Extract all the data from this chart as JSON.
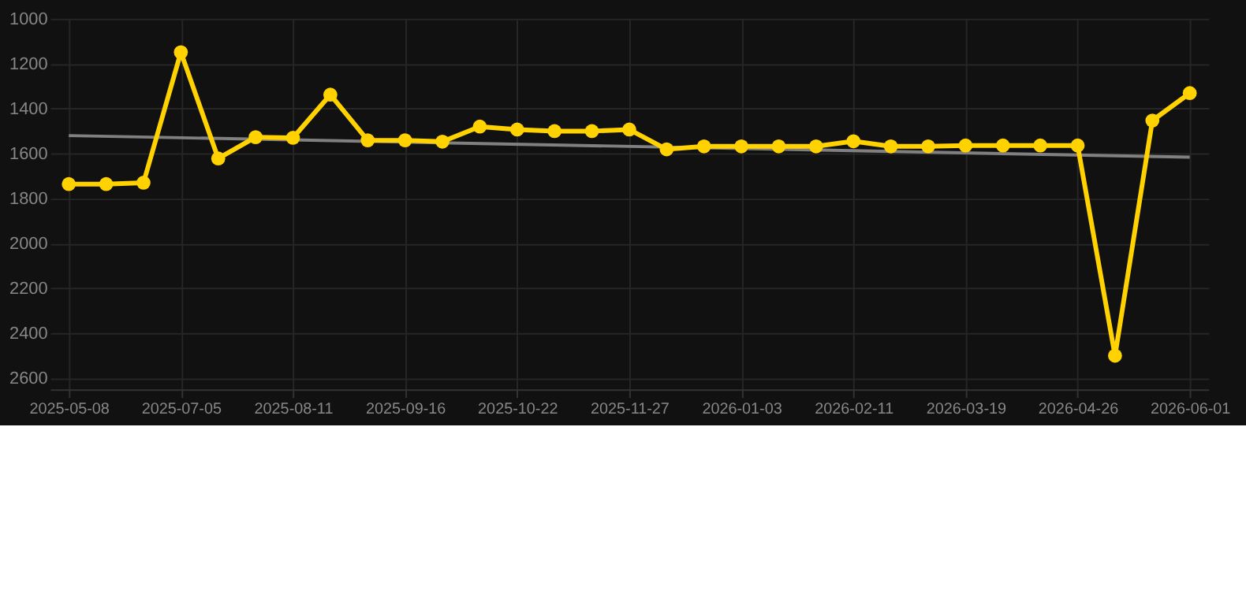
{
  "chart_data": {
    "type": "line",
    "categories": [
      "2025-05-08",
      null,
      null,
      "2025-07-05",
      null,
      null,
      "2025-08-11",
      null,
      null,
      "2025-09-16",
      null,
      null,
      "2025-10-22",
      null,
      null,
      "2025-11-27",
      null,
      null,
      "2026-01-03",
      null,
      null,
      "2026-02-11",
      null,
      null,
      "2026-03-19",
      null,
      null,
      "2026-04-26",
      null,
      null,
      "2026-06-01"
    ],
    "series": [
      {
        "color": "#ffd200",
        "marker": "circle",
        "values": [
          1736,
          1736,
          1730,
          1149,
          1622,
          1527,
          1530,
          1338,
          1541,
          1541,
          1547,
          1480,
          1493,
          1500,
          1500,
          1493,
          1581,
          1568,
          1568,
          1568,
          1568,
          1545,
          1568,
          1568,
          1564,
          1564,
          1564,
          1564,
          2500,
          1453,
          1331
        ]
      },
      {
        "type": "line",
        "color": "#808080",
        "marker": "none",
        "values": [
          1520,
          null,
          null,
          null,
          null,
          null,
          null,
          null,
          null,
          null,
          null,
          null,
          null,
          null,
          null,
          null,
          null,
          null,
          null,
          null,
          null,
          null,
          null,
          null,
          null,
          null,
          null,
          null,
          null,
          null,
          1616
        ]
      }
    ],
    "ylim": [
      2650,
      1000
    ],
    "yticks": [
      1000,
      1200,
      1400,
      1600,
      1800,
      2000,
      2200,
      2400,
      2600
    ],
    "grid": true
  }
}
